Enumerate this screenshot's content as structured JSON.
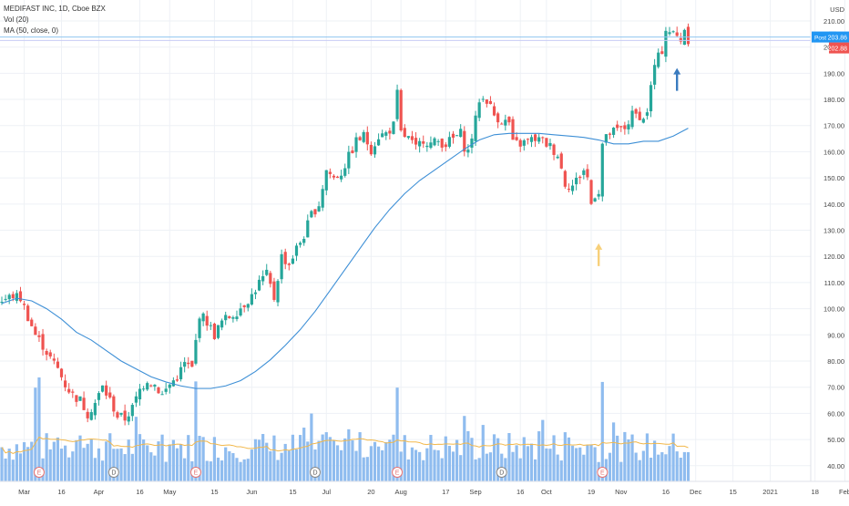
{
  "legend": {
    "symbol_line": "MEDIFAST INC, 1D, Cboe BZX",
    "volume_line": "Vol (20)",
    "ma_line": "MA (50, close, 0)"
  },
  "currency": "USD",
  "price_tags": {
    "post_label": "Post",
    "post_value": "203.86",
    "last_value": "202.88"
  },
  "colors": {
    "up": "#26a69a",
    "down": "#ef5350",
    "ma": "#3d8fd6",
    "volume": "#8fbcef",
    "volume_ma": "#f2b84b",
    "post_tag": "#2196f3",
    "last_tag": "#ef5350",
    "arrow_blue": "#3a7bbf",
    "arrow_yellow": "#f7d07a",
    "grid": "#eef1f6"
  },
  "chart_data": {
    "type": "candlestick",
    "title": "MEDIFAST INC, 1D, Cboe BZX",
    "y_axis": {
      "unit": "USD",
      "min": 34,
      "max": 218,
      "ticks": [
        40,
        50,
        60,
        70,
        80,
        90,
        100,
        110,
        120,
        130,
        140,
        150,
        160,
        170,
        180,
        190,
        200,
        210
      ],
      "tick_labels": [
        "40.00",
        "50.00",
        "60.00",
        "70.00",
        "80.00",
        "90.00",
        "100.00",
        "110.00",
        "120.00",
        "130.00",
        "140.00",
        "150.00",
        "160.00",
        "170.00",
        "180.00",
        "190.00",
        "200.00",
        "210.00"
      ]
    },
    "x_axis": {
      "labels": [
        "Mar",
        "16",
        "Apr",
        "16",
        "May",
        "15",
        "Jun",
        "15",
        "Jul",
        "20",
        "Aug",
        "17",
        "Sep",
        "16",
        "Oct",
        "19",
        "Nov",
        "16",
        "Dec",
        "15",
        "2021",
        "18",
        "Feb"
      ],
      "label_day_index": [
        6,
        16,
        26,
        37,
        45,
        57,
        67,
        78,
        87,
        99,
        107,
        119,
        127,
        139,
        146,
        158,
        166,
        178,
        186,
        196,
        206,
        218,
        226
      ]
    },
    "price_waypoints": [
      [
        0,
        103
      ],
      [
        3,
        105
      ],
      [
        5,
        104
      ],
      [
        7,
        97
      ],
      [
        9,
        90
      ],
      [
        11,
        86
      ],
      [
        13,
        81
      ],
      [
        15,
        77
      ],
      [
        17,
        71
      ],
      [
        19,
        67
      ],
      [
        21,
        65
      ],
      [
        23,
        60
      ],
      [
        25,
        64
      ],
      [
        27,
        70
      ],
      [
        29,
        65
      ],
      [
        31,
        59
      ],
      [
        33,
        58
      ],
      [
        35,
        62
      ],
      [
        37,
        69
      ],
      [
        39,
        73
      ],
      [
        41,
        71
      ],
      [
        43,
        67
      ],
      [
        45,
        71
      ],
      [
        47,
        74
      ],
      [
        49,
        79
      ],
      [
        51,
        77
      ],
      [
        53,
        98
      ],
      [
        55,
        95
      ],
      [
        57,
        90
      ],
      [
        59,
        95
      ],
      [
        61,
        97
      ],
      [
        63,
        99
      ],
      [
        65,
        102
      ],
      [
        67,
        105
      ],
      [
        69,
        110
      ],
      [
        71,
        113
      ],
      [
        73,
        104
      ],
      [
        75,
        120
      ],
      [
        77,
        117
      ],
      [
        79,
        123
      ],
      [
        81,
        128
      ],
      [
        83,
        136
      ],
      [
        85,
        140
      ],
      [
        87,
        153
      ],
      [
        89,
        150
      ],
      [
        91,
        152
      ],
      [
        93,
        158
      ],
      [
        95,
        164
      ],
      [
        97,
        166
      ],
      [
        99,
        161
      ],
      [
        101,
        166
      ],
      [
        103,
        167
      ],
      [
        105,
        170
      ],
      [
        106,
        182
      ],
      [
        107,
        167
      ],
      [
        109,
        165
      ],
      [
        111,
        161
      ],
      [
        113,
        165
      ],
      [
        115,
        163
      ],
      [
        117,
        164
      ],
      [
        119,
        163
      ],
      [
        121,
        165
      ],
      [
        123,
        167
      ],
      [
        124,
        162
      ],
      [
        125,
        160
      ],
      [
        127,
        172
      ],
      [
        128,
        180
      ],
      [
        130,
        180
      ],
      [
        132,
        174
      ],
      [
        134,
        172
      ],
      [
        136,
        171
      ],
      [
        137,
        163
      ],
      [
        139,
        163
      ],
      [
        141,
        164
      ],
      [
        143,
        165
      ],
      [
        145,
        164
      ],
      [
        147,
        162
      ],
      [
        149,
        159
      ],
      [
        151,
        148
      ],
      [
        153,
        147
      ],
      [
        155,
        151
      ],
      [
        156,
        153
      ],
      [
        157,
        150
      ],
      [
        158,
        140
      ],
      [
        159,
        144
      ],
      [
        160,
        145
      ],
      [
        161,
        163
      ],
      [
        163,
        167
      ],
      [
        165,
        168
      ],
      [
        167,
        169
      ],
      [
        169,
        174
      ],
      [
        171,
        174
      ],
      [
        172,
        172
      ],
      [
        173,
        176
      ],
      [
        175,
        193
      ],
      [
        177,
        199
      ],
      [
        178,
        207
      ],
      [
        180,
        205
      ],
      [
        182,
        203
      ],
      [
        183,
        207
      ],
      [
        184,
        203
      ]
    ],
    "ma50_waypoints": [
      [
        0,
        102
      ],
      [
        4,
        104
      ],
      [
        8,
        103
      ],
      [
        12,
        100
      ],
      [
        16,
        96
      ],
      [
        20,
        91
      ],
      [
        24,
        88
      ],
      [
        28,
        84
      ],
      [
        32,
        80
      ],
      [
        36,
        77
      ],
      [
        40,
        74
      ],
      [
        44,
        72
      ],
      [
        48,
        70.5
      ],
      [
        52,
        69.5
      ],
      [
        56,
        69.5
      ],
      [
        60,
        70.5
      ],
      [
        64,
        72.5
      ],
      [
        68,
        76
      ],
      [
        72,
        80.5
      ],
      [
        76,
        86
      ],
      [
        80,
        92
      ],
      [
        84,
        99
      ],
      [
        88,
        107
      ],
      [
        92,
        115
      ],
      [
        96,
        123
      ],
      [
        100,
        131
      ],
      [
        104,
        138
      ],
      [
        108,
        144
      ],
      [
        112,
        149
      ],
      [
        116,
        153
      ],
      [
        120,
        157
      ],
      [
        124,
        161
      ],
      [
        128,
        164.5
      ],
      [
        132,
        166.5
      ],
      [
        136,
        167
      ],
      [
        140,
        167
      ],
      [
        144,
        167
      ],
      [
        148,
        166.5
      ],
      [
        152,
        166
      ],
      [
        156,
        165.5
      ],
      [
        160,
        164.5
      ],
      [
        164,
        163
      ],
      [
        168,
        163
      ],
      [
        172,
        164
      ],
      [
        176,
        164
      ],
      [
        180,
        166
      ],
      [
        184,
        169
      ]
    ],
    "volume_bars_sparse_heights": {
      "unit": "relative (0-1)",
      "tall_spikes_day_index": [
        9,
        10,
        52,
        106,
        161
      ]
    },
    "annotations": [
      {
        "type": "arrow_up",
        "color": "yellow",
        "day_index": 160,
        "price": 125
      },
      {
        "type": "arrow_up",
        "color": "blue",
        "day_index": 181,
        "price": 192
      }
    ],
    "earnings_markers_day_index": [
      10,
      30,
      52,
      84,
      106,
      134,
      161
    ],
    "earnings_marker_label": "E",
    "dividend_markers_day_index": [
      30,
      84,
      134
    ],
    "dividend_marker_label": "D",
    "horizontal_lines": [
      203.86,
      202.88
    ]
  }
}
